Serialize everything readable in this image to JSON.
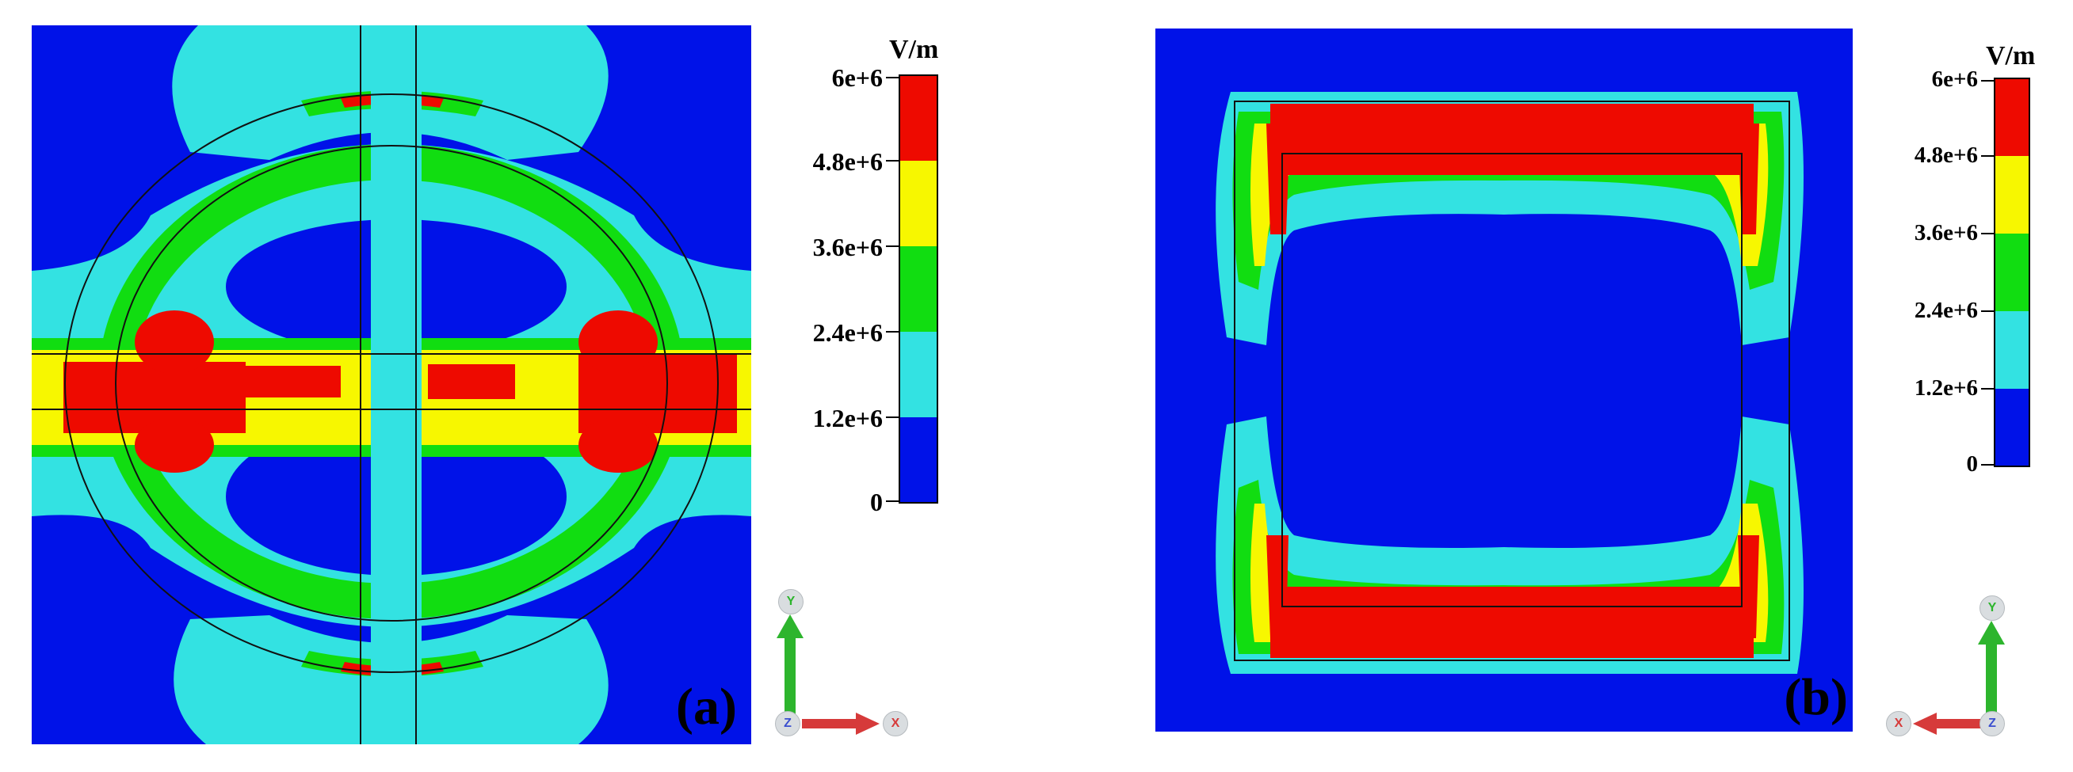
{
  "colors": {
    "background": "#0012e8",
    "level1": "#0012e8",
    "level2": "#33e2e2",
    "level3": "#11dd11",
    "level4": "#f7f700",
    "level5": "#ee0a00",
    "outline": "#111111",
    "axis_y": "#2db52d",
    "axis_x": "#d63a3a",
    "axis_z": "#4a5ed6"
  },
  "panels": [
    {
      "tag": "(a)",
      "legend": {
        "unit": "V/m",
        "ticks": [
          "6e+6",
          "4.8e+6",
          "3.6e+6",
          "2.4e+6",
          "1.2e+6",
          "0"
        ]
      },
      "triad": {
        "up": "y",
        "right": "x",
        "origin": "z"
      }
    },
    {
      "tag": "(b)",
      "legend": {
        "unit": "V/m",
        "ticks": [
          "6e+6",
          "4.8e+6",
          "3.6e+6",
          "2.4e+6",
          "1.2e+6",
          "0"
        ]
      },
      "triad": {
        "up": "y",
        "left": "x",
        "origin": "z"
      }
    }
  ]
}
